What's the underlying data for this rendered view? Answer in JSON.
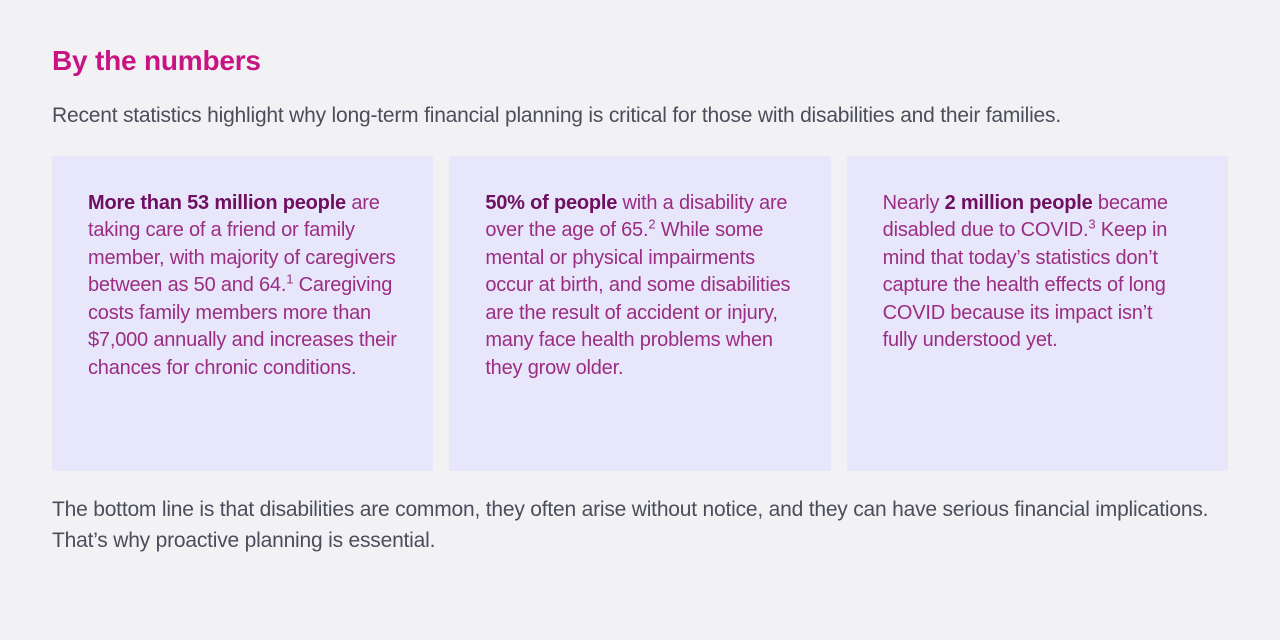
{
  "page": {
    "title": "By the numbers",
    "intro": "Recent statistics highlight why long-term financial planning is critical for those with disabilities and their families.",
    "outro": "The bottom line is that disabilities are common, they often arise without notice, and they can have serious financial implications. That’s why proactive planning is essential."
  },
  "colors": {
    "page_background": "#f2f2f4",
    "card_background": "#e7e6fb",
    "heading": "#c81482",
    "body_text": "#4b4d5a",
    "card_text": "#9b2d82",
    "card_text_bold": "#6e0f5f"
  },
  "cards": [
    {
      "segments": [
        {
          "text": "More than 53 million people",
          "bold": true
        },
        {
          "text": " are taking care of a friend or family member, with majority of caregivers between as 50 and 64.",
          "bold": false
        },
        {
          "text": "1",
          "bold": false,
          "sup": true
        },
        {
          "text": " Caregiving costs family members more than $7,000 annually and increases their chances for chronic conditions.",
          "bold": false
        }
      ]
    },
    {
      "segments": [
        {
          "text": "50% of people",
          "bold": true
        },
        {
          "text": " with a disability are over the age of 65.",
          "bold": false
        },
        {
          "text": "2",
          "bold": false,
          "sup": true
        },
        {
          "text": " While some mental or physical impairments occur at birth, and some disabilities are the result of accident or injury, many face health problems when they grow older.",
          "bold": false
        }
      ]
    },
    {
      "segments": [
        {
          "text": "Nearly ",
          "bold": false
        },
        {
          "text": "2 million people",
          "bold": true
        },
        {
          "text": " became disabled due to COVID.",
          "bold": false
        },
        {
          "text": "3",
          "bold": false,
          "sup": true
        },
        {
          "text": " Keep in mind that today’s statistics don’t capture the health effects of long COVID because its impact isn’t fully understood yet.",
          "bold": false
        }
      ]
    }
  ]
}
